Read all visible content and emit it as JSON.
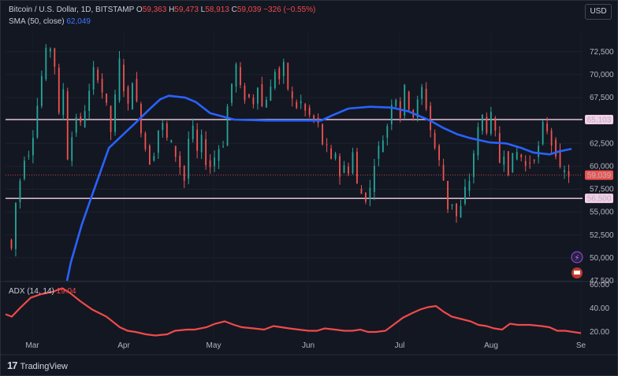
{
  "header": {
    "symbol": "Bitcoin / U.S. Dollar, 1D, BITSTAMP",
    "o_label": "O",
    "o_value": "59,363",
    "h_label": "H",
    "h_value": "59,473",
    "l_label": "L",
    "l_value": "58,913",
    "c_label": "C",
    "c_value": "59,039",
    "change": "−326 (−0.55%)",
    "sma_label": "SMA (50, close)",
    "sma_value": "62,049",
    "adx_label": "ADX (14, 14)",
    "adx_value": "19.04"
  },
  "currency_button": "USD",
  "brand": {
    "logo": "17",
    "name": "TradingView"
  },
  "colors": {
    "background": "#131722",
    "up": "#26a69a",
    "down": "#ef5350",
    "sma": "#2962ff",
    "adx": "#f04a4a",
    "level_line": "#f4cfe6"
  },
  "chart_data": [
    {
      "type": "candlestick",
      "title": "Bitcoin / U.S. Dollar, 1D, BITSTAMP",
      "x_axis": [
        "Mar",
        "Apr",
        "May",
        "Jun",
        "Jul",
        "Aug",
        "Se"
      ],
      "y_ticks": [
        "47,500",
        "50,000",
        "52,500",
        "55,000",
        "57,500",
        "60,000",
        "62,500",
        "65,000",
        "67,500",
        "70,000",
        "72,500"
      ],
      "ylim": [
        47500,
        74800
      ],
      "grid": true,
      "horizontal_levels": [
        {
          "label": "65,103",
          "value": 65103
        },
        {
          "label": "56,500",
          "value": 56500
        }
      ],
      "last_price": {
        "label": "59,039",
        "value": 59039
      },
      "series": [
        {
          "name": "SMA (50, close)",
          "type": "line",
          "points": [
            [
              56.5,
              47500
            ],
            [
              60,
              49500
            ],
            [
              70,
              53600
            ],
            [
              80,
              57000
            ],
            [
              95,
              62000
            ],
            [
              120,
              64800
            ],
            [
              132,
              66200
            ],
            [
              142,
              67300
            ],
            [
              150,
              67700
            ],
            [
              165,
              67500
            ],
            [
              175,
              67000
            ],
            [
              188,
              65800
            ],
            [
              210,
              65100
            ],
            [
              240,
              65000
            ],
            [
              262,
              65000
            ],
            [
              290,
              65000
            ],
            [
              301,
              65600
            ],
            [
              315,
              66300
            ],
            [
              335,
              66500
            ],
            [
              355,
              66400
            ],
            [
              370,
              66000
            ],
            [
              390,
              65000
            ],
            [
              402,
              64200
            ],
            [
              415,
              63500
            ],
            [
              426,
              63100
            ],
            [
              445,
              62600
            ],
            [
              460,
              62500
            ],
            [
              474,
              62000
            ],
            [
              485,
              61500
            ],
            [
              500,
              61300
            ],
            [
              508,
              61600
            ],
            [
              520,
              61900
            ]
          ]
        }
      ],
      "candle_anchors": [
        [
          0,
          52000
        ],
        [
          3,
          51000
        ],
        [
          6,
          56000
        ],
        [
          10,
          61000
        ],
        [
          13,
          61500
        ],
        [
          16,
          63500
        ],
        [
          20,
          69800
        ],
        [
          23,
          72500
        ],
        [
          26,
          73000
        ],
        [
          28,
          71000
        ],
        [
          30,
          65500
        ],
        [
          33,
          68500
        ],
        [
          36,
          61000
        ],
        [
          40,
          65500
        ],
        [
          43,
          64500
        ],
        [
          48,
          68000
        ],
        [
          51,
          70500
        ],
        [
          54,
          69800
        ],
        [
          58,
          66500
        ],
        [
          61,
          63800
        ],
        [
          64,
          67500
        ],
        [
          67,
          71500
        ],
        [
          70,
          68500
        ],
        [
          73,
          66500
        ],
        [
          76,
          69500
        ],
        [
          79,
          66800
        ],
        [
          82,
          64000
        ],
        [
          85,
          62000
        ],
        [
          88,
          60500
        ],
        [
          91,
          61500
        ],
        [
          94,
          64000
        ],
        [
          97,
          64500
        ],
        [
          100,
          63000
        ],
        [
          103,
          62500
        ],
        [
          106,
          61200
        ],
        [
          109,
          60000
        ],
        [
          112,
          58500
        ],
        [
          115,
          63000
        ],
        [
          118,
          64000
        ],
        [
          121,
          61500
        ],
        [
          124,
          63000
        ],
        [
          127,
          60500
        ],
        [
          130,
          60000
        ],
        [
          133,
          61000
        ],
        [
          136,
          62000
        ],
        [
          139,
          62500
        ],
        [
          142,
          66500
        ],
        [
          145,
          69000
        ],
        [
          148,
          71000
        ],
        [
          151,
          68500
        ],
        [
          154,
          67500
        ],
        [
          157,
          67500
        ],
        [
          160,
          67000
        ],
        [
          163,
          69000
        ],
        [
          166,
          66500
        ],
        [
          169,
          67500
        ],
        [
          172,
          68500
        ],
        [
          175,
          70500
        ],
        [
          178,
          69500
        ],
        [
          181,
          71000
        ],
        [
          184,
          68500
        ],
        [
          187,
          67200
        ],
        [
          190,
          66500
        ],
        [
          193,
          67000
        ],
        [
          196,
          66000
        ],
        [
          199,
          65500
        ],
        [
          202,
          65000
        ],
        [
          205,
          64500
        ],
        [
          208,
          62500
        ],
        [
          211,
          62000
        ],
        [
          214,
          60500
        ],
        [
          217,
          61500
        ],
        [
          220,
          59000
        ],
        [
          223,
          60000
        ],
        [
          226,
          59500
        ],
        [
          229,
          61500
        ],
        [
          232,
          58000
        ],
        [
          235,
          57000
        ],
        [
          238,
          56500
        ],
        [
          241,
          57500
        ],
        [
          244,
          60500
        ],
        [
          247,
          62000
        ],
        [
          250,
          63000
        ],
        [
          253,
          64500
        ],
        [
          256,
          67000
        ],
        [
          259,
          67500
        ],
        [
          262,
          65500
        ],
        [
          265,
          68500
        ],
        [
          268,
          66500
        ],
        [
          271,
          65500
        ],
        [
          274,
          67000
        ],
        [
          277,
          68500
        ],
        [
          280,
          66500
        ],
        [
          283,
          64000
        ],
        [
          286,
          62000
        ],
        [
          289,
          60500
        ],
        [
          292,
          58500
        ],
        [
          294,
          55500
        ],
        [
          296,
          56000
        ],
        [
          298,
          54500
        ],
        [
          300,
          55500
        ],
        [
          302,
          57500
        ],
        [
          304,
          58500
        ],
        [
          306,
          61500
        ],
        [
          308,
          64000
        ],
        [
          310,
          65500
        ],
        [
          312,
          64000
        ],
        [
          314,
          65500
        ],
        [
          316,
          63500
        ],
        [
          318,
          60500
        ],
        [
          320,
          61500
        ],
        [
          322,
          59500
        ],
        [
          324,
          61000
        ],
        [
          326,
          61500
        ],
        [
          328,
          61000
        ],
        [
          330,
          60000
        ],
        [
          332,
          60500
        ],
        [
          334,
          61000
        ],
        [
          336,
          62000
        ],
        [
          338,
          64500
        ],
        [
          340,
          64000
        ],
        [
          342,
          62500
        ],
        [
          344,
          61500
        ],
        [
          346,
          59500
        ],
        [
          348,
          59400
        ],
        [
          350,
          59039
        ]
      ]
    },
    {
      "type": "line",
      "name": "ADX (14, 14)",
      "y_ticks": [
        "20.00",
        "40.00",
        "60.00"
      ],
      "ylim": [
        14,
        62
      ],
      "series": [
        {
          "name": "ADX (14, 14)",
          "points": [
            [
              0,
              35
            ],
            [
              8,
              33
            ],
            [
              18,
              40
            ],
            [
              32,
              49
            ],
            [
              45,
              52
            ],
            [
              60,
              54
            ],
            [
              72,
              57
            ],
            [
              82,
              53
            ],
            [
              95,
              46
            ],
            [
              110,
              39
            ],
            [
              128,
              33
            ],
            [
              145,
              24
            ],
            [
              155,
              21
            ],
            [
              165,
              20
            ],
            [
              178,
              18
            ],
            [
              190,
              17
            ],
            [
              205,
              18
            ],
            [
              215,
              21
            ],
            [
              230,
              22
            ],
            [
              240,
              22
            ],
            [
              255,
              24
            ],
            [
              266,
              27
            ],
            [
              278,
              29
            ],
            [
              290,
              26
            ],
            [
              300,
              24
            ],
            [
              315,
              23
            ],
            [
              328,
              22
            ],
            [
              340,
              25
            ],
            [
              350,
              24
            ],
            [
              360,
              23
            ],
            [
              372,
              22
            ],
            [
              385,
              21
            ],
            [
              395,
              21
            ],
            [
              405,
              23
            ],
            [
              418,
              22
            ],
            [
              430,
              21
            ],
            [
              440,
              21
            ],
            [
              450,
              22
            ],
            [
              460,
              20
            ],
            [
              470,
              20
            ],
            [
              482,
              21
            ],
            [
              492,
              26
            ],
            [
              504,
              32
            ],
            [
              516,
              36
            ],
            [
              526,
              39
            ],
            [
              536,
              41
            ],
            [
              546,
              42
            ],
            [
              556,
              37
            ],
            [
              566,
              33
            ],
            [
              578,
              31
            ],
            [
              590,
              29
            ],
            [
              600,
              26
            ],
            [
              610,
              25
            ],
            [
              620,
              23
            ],
            [
              630,
              22
            ],
            [
              640,
              27
            ],
            [
              650,
              26
            ],
            [
              665,
              26
            ],
            [
              680,
              25
            ],
            [
              690,
              24
            ],
            [
              700,
              21
            ],
            [
              710,
              21
            ],
            [
              720,
              20
            ],
            [
              730,
              19
            ]
          ]
        }
      ]
    }
  ]
}
